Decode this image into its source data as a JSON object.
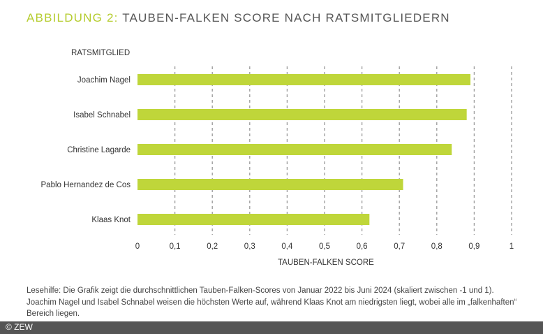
{
  "title_prefix": "ABBILDUNG 2:",
  "title": "TAUBEN-FALKEN SCORE NACH RATSMITGLIEDERN",
  "note": "Lesehilfe: Die Grafik zeigt die durchschnittlichen Tauben-Falken-Scores von Januar 2022 bis Juni 2024 (skaliert zwischen -1 und 1). Joachim Nagel und Isabel Schnabel weisen die höchsten Werte auf, während Klaas Knot am niedrigsten liegt, wobei alle im „falkenhaften“ Bereich liegen.",
  "footer": "© ZEW",
  "chart_data": {
    "type": "bar",
    "orientation": "horizontal",
    "ylabel": "RATSMITGLIED",
    "xlabel": "TAUBEN-FALKEN SCORE",
    "categories": [
      "Joachim Nagel",
      "Isabel Schnabel",
      "Christine Lagarde",
      "Pablo Hernandez de Cos",
      "Klaas Knot"
    ],
    "values": [
      0.89,
      0.88,
      0.84,
      0.71,
      0.62
    ],
    "xlim": [
      0,
      1
    ],
    "ticks": [
      "0",
      "0,1",
      "0,2",
      "0,3",
      "0,4",
      "0,5",
      "0,6",
      "0,7",
      "0,8",
      "0,9",
      "1"
    ],
    "grid": "vertical dashed",
    "bar_color": "#bfd63a"
  }
}
